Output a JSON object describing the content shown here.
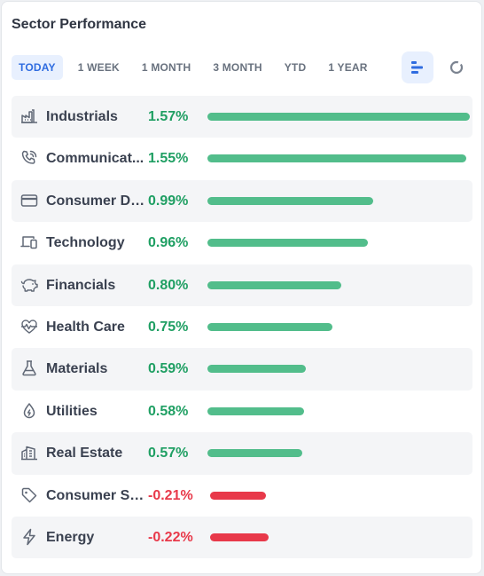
{
  "title": "Sector Performance",
  "tabs": [
    "TODAY",
    "1 WEEK",
    "1 MONTH",
    "3 MONTH",
    "YTD",
    "1 YEAR"
  ],
  "active_tab": "TODAY",
  "view_toggle": {
    "selected": "bar-chart-view",
    "options": [
      "bar-chart-view",
      "donut-chart-view"
    ]
  },
  "colors": {
    "positive": "#52bd8b",
    "positive_text": "#1f9f63",
    "negative": "#e8394a",
    "accent": "#2f6ce0"
  },
  "sectors": [
    {
      "name": "Industrials",
      "label": "Industrials",
      "value": 1.57,
      "display": "1.57%",
      "icon": "factory-icon"
    },
    {
      "name": "Communication Services",
      "label": "Communicat...",
      "value": 1.55,
      "display": "1.55%",
      "icon": "phone-icon"
    },
    {
      "name": "Consumer Discretionary",
      "label": "Consumer Di...",
      "value": 0.99,
      "display": "0.99%",
      "icon": "credit-card-icon"
    },
    {
      "name": "Technology",
      "label": "Technology",
      "value": 0.96,
      "display": "0.96%",
      "icon": "devices-icon"
    },
    {
      "name": "Financials",
      "label": "Financials",
      "value": 0.8,
      "display": "0.80%",
      "icon": "piggy-bank-icon"
    },
    {
      "name": "Health Care",
      "label": "Health Care",
      "value": 0.75,
      "display": "0.75%",
      "icon": "heartbeat-icon"
    },
    {
      "name": "Materials",
      "label": "Materials",
      "value": 0.59,
      "display": "0.59%",
      "icon": "flask-icon"
    },
    {
      "name": "Utilities",
      "label": "Utilities",
      "value": 0.58,
      "display": "0.58%",
      "icon": "water-drop-icon"
    },
    {
      "name": "Real Estate",
      "label": "Real Estate",
      "value": 0.57,
      "display": "0.57%",
      "icon": "building-icon"
    },
    {
      "name": "Consumer Staples",
      "label": "Consumer St...",
      "value": -0.21,
      "display": "-0.21%",
      "icon": "tag-icon"
    },
    {
      "name": "Energy",
      "label": "Energy",
      "value": -0.22,
      "display": "-0.22%",
      "icon": "lightning-icon"
    }
  ],
  "chart_data": {
    "type": "bar",
    "orientation": "horizontal",
    "categories": [
      "Industrials",
      "Communicat...",
      "Consumer Di...",
      "Technology",
      "Financials",
      "Health Care",
      "Materials",
      "Utilities",
      "Real Estate",
      "Consumer St...",
      "Energy"
    ],
    "values": [
      1.57,
      1.55,
      0.99,
      0.96,
      0.8,
      0.75,
      0.59,
      0.58,
      0.57,
      -0.21,
      -0.22
    ],
    "unit": "%"
  }
}
